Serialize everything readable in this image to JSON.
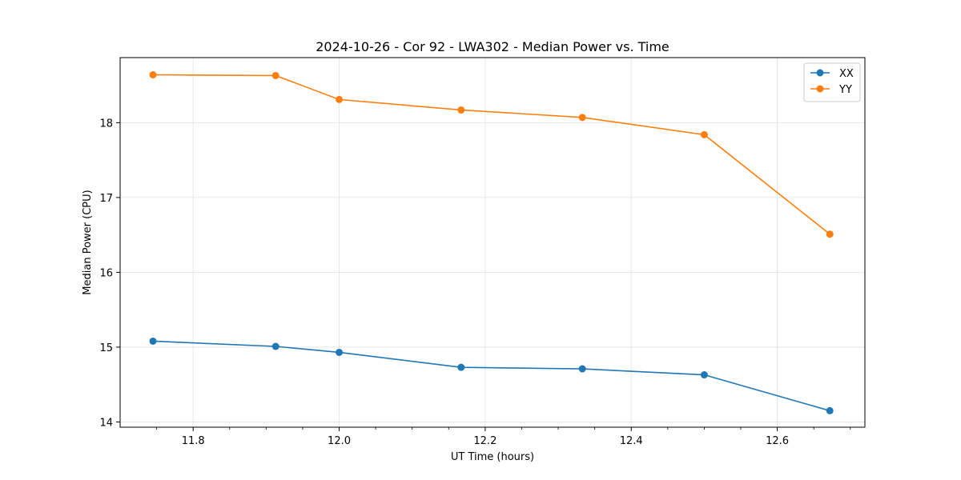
{
  "chart_data": {
    "type": "line",
    "title": "2024-10-26 - Cor 92 - LWA302 - Median Power vs. Time",
    "xlabel": "UT Time (hours)",
    "ylabel": "Median Power (CPU)",
    "xlim": [
      11.7,
      12.72
    ],
    "ylim": [
      13.93,
      18.87
    ],
    "xticks": [
      11.8,
      12.0,
      12.2,
      12.4,
      12.6
    ],
    "xtick_labels": [
      "11.8",
      "12.0",
      "12.2",
      "12.4",
      "12.6"
    ],
    "xminor_ticks": [
      11.75,
      11.85,
      11.9,
      11.95,
      12.05,
      12.1,
      12.15,
      12.25,
      12.3,
      12.35,
      12.45,
      12.5,
      12.55,
      12.65,
      12.7
    ],
    "yticks": [
      14,
      15,
      16,
      17,
      18
    ],
    "ytick_labels": [
      "14",
      "15",
      "16",
      "17",
      "18"
    ],
    "grid": true,
    "legend_position": "top-right",
    "x": [
      11.745,
      11.913,
      12.0,
      12.167,
      12.333,
      12.5,
      12.672
    ],
    "series": [
      {
        "name": "XX",
        "color": "#1f77b4",
        "values": [
          15.08,
          15.01,
          14.93,
          14.73,
          14.71,
          14.63,
          14.15
        ]
      },
      {
        "name": "YY",
        "color": "#ff7f0e",
        "values": [
          18.64,
          18.63,
          18.31,
          18.17,
          18.07,
          17.84,
          16.51
        ]
      }
    ]
  }
}
